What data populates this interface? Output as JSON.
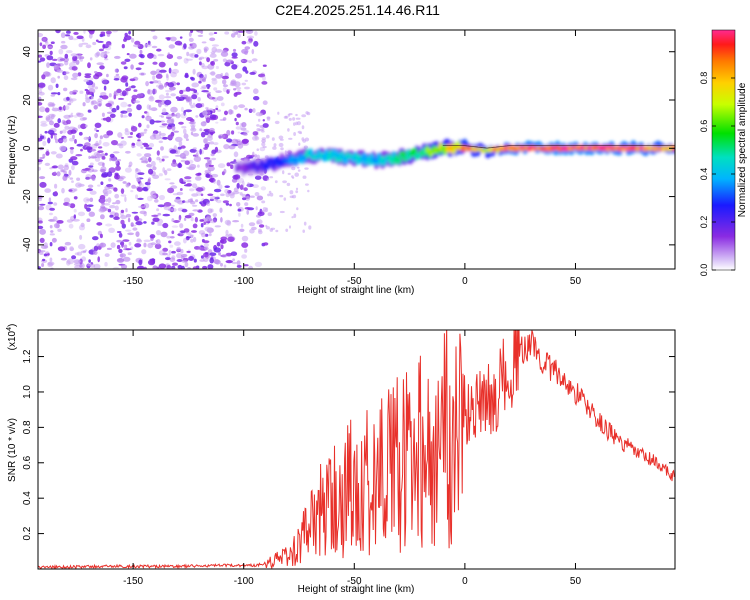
{
  "title": "C2E4.2025.251.14.46.R11",
  "chart_data": [
    {
      "type": "heatmap",
      "xlabel": "Height of straight line (km)",
      "ylabel": "Frequency (Hz)",
      "xlim": [
        -193,
        95
      ],
      "ylim": [
        -50,
        49
      ],
      "xticks": [
        -150,
        -100,
        -50,
        0,
        50
      ],
      "yticks": [
        -40,
        -20,
        0,
        20,
        40
      ],
      "colorbar": {
        "label": "Normalized spectral amplitude",
        "range": [
          0,
          1
        ],
        "ticks": [
          "0.0",
          "0.2",
          "0.4",
          "0.6",
          "0.8"
        ],
        "tick_values": [
          0.0,
          0.2,
          0.4,
          0.6,
          0.8
        ]
      },
      "noise_region_x": [
        -193,
        -90
      ],
      "ridge": [
        {
          "x": -100,
          "y": -8,
          "amp": 0.15
        },
        {
          "x": -90,
          "y": -7,
          "amp": 0.25
        },
        {
          "x": -80,
          "y": -5,
          "amp": 0.35
        },
        {
          "x": -70,
          "y": -3,
          "amp": 0.45
        },
        {
          "x": -60,
          "y": -3,
          "amp": 0.45
        },
        {
          "x": -50,
          "y": -4,
          "amp": 0.45
        },
        {
          "x": -40,
          "y": -5,
          "amp": 0.4
        },
        {
          "x": -30,
          "y": -4,
          "amp": 0.5
        },
        {
          "x": -20,
          "y": -2,
          "amp": 0.55
        },
        {
          "x": -10,
          "y": 0,
          "amp": 0.7
        },
        {
          "x": 0,
          "y": 0,
          "amp": 0.85
        },
        {
          "x": 10,
          "y": -1,
          "amp": 0.75
        },
        {
          "x": 20,
          "y": 0,
          "amp": 0.95
        },
        {
          "x": 40,
          "y": 0,
          "amp": 1.0
        },
        {
          "x": 60,
          "y": 0,
          "amp": 0.98
        },
        {
          "x": 80,
          "y": 0,
          "amp": 0.95
        },
        {
          "x": 95,
          "y": 0,
          "amp": 0.85
        }
      ]
    },
    {
      "type": "line",
      "xlabel": "Height of straight line (km)",
      "ylabel": "SNR (10 * v/v)",
      "yscale_label": "(x10",
      "yscale_exponent": "4",
      "xlim": [
        -193,
        95
      ],
      "ylim": [
        0,
        13500
      ],
      "xticks": [
        -150,
        -100,
        -50,
        0,
        50
      ],
      "yticks": [
        2000,
        4000,
        6000,
        8000,
        10000,
        12000
      ],
      "ytick_labels": [
        "0.2",
        "0.4",
        "0.6",
        "0.8",
        "1.0",
        "1.2"
      ],
      "color": "#e8302a",
      "series": [
        {
          "name": "SNR",
          "points": [
            [
              -193,
              100
            ],
            [
              -160,
              150
            ],
            [
              -130,
              150
            ],
            [
              -110,
              200
            ],
            [
              -95,
              200
            ],
            [
              -88,
              400
            ],
            [
              -82,
              700
            ],
            [
              -78,
              900
            ],
            [
              -74,
              1500
            ],
            [
              -70,
              2500
            ],
            [
              -65,
              3200
            ],
            [
              -60,
              3600
            ],
            [
              -55,
              4000
            ],
            [
              -50,
              4700
            ],
            [
              -45,
              5200
            ],
            [
              -40,
              4900
            ],
            [
              -35,
              5400
            ],
            [
              -30,
              5800
            ],
            [
              -25,
              6000
            ],
            [
              -20,
              6500
            ],
            [
              -15,
              6300
            ],
            [
              -10,
              7200
            ],
            [
              -5,
              7800
            ],
            [
              0,
              8500
            ],
            [
              5,
              9000
            ],
            [
              10,
              9500
            ],
            [
              15,
              10000
            ],
            [
              20,
              11500
            ],
            [
              25,
              12200
            ],
            [
              30,
              12800
            ],
            [
              35,
              11800
            ],
            [
              40,
              11200
            ],
            [
              45,
              10600
            ],
            [
              50,
              10000
            ],
            [
              55,
              9300
            ],
            [
              60,
              8400
            ],
            [
              65,
              7800
            ],
            [
              70,
              7200
            ],
            [
              75,
              6800
            ],
            [
              80,
              6400
            ],
            [
              85,
              6100
            ],
            [
              90,
              5600
            ],
            [
              95,
              5200
            ]
          ]
        }
      ]
    }
  ]
}
